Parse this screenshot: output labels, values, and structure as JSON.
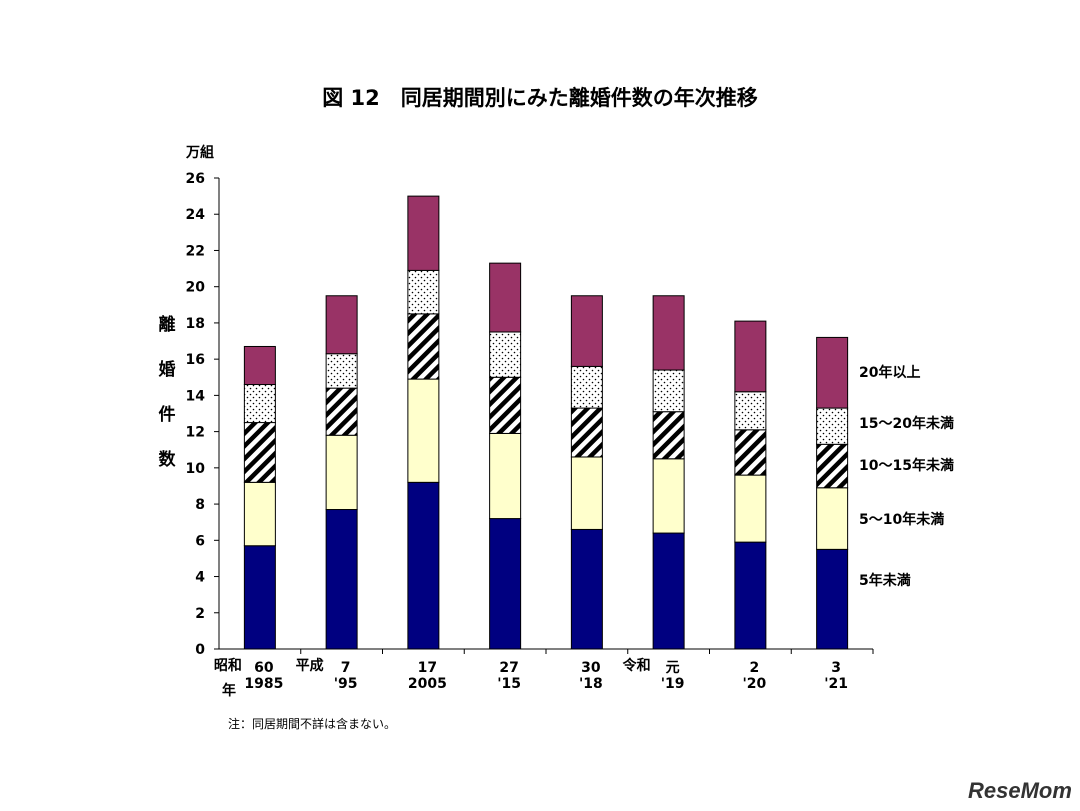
{
  "chart_data": {
    "type": "bar",
    "stacked": true,
    "title": "図 12　同居期間別にみた離婚件数の年次推移",
    "y_unit": "万組",
    "ylabel": "離婚件数",
    "ylim": [
      0,
      26
    ],
    "y_ticks": [
      0,
      2,
      4,
      6,
      8,
      10,
      12,
      14,
      16,
      18,
      20,
      22,
      24,
      26
    ],
    "grid": false,
    "legend_position": "right",
    "era_labels": [
      {
        "text": "昭和",
        "at_category": 0
      },
      {
        "text": "平成",
        "at_category": 1
      },
      {
        "text": "令和",
        "at_category": 5
      }
    ],
    "year_label": "年",
    "categories": [
      {
        "top": "60",
        "bottom": "1985"
      },
      {
        "top": "7",
        "bottom": "'95"
      },
      {
        "top": "17",
        "bottom": "2005"
      },
      {
        "top": "27",
        "bottom": "'15"
      },
      {
        "top": "30",
        "bottom": "'18"
      },
      {
        "top": "元",
        "bottom": "'19"
      },
      {
        "top": "2",
        "bottom": "'20"
      },
      {
        "top": "3",
        "bottom": "'21"
      }
    ],
    "series": [
      {
        "name": "5年未満",
        "color": "#000080",
        "pattern": "solid",
        "values": [
          5.7,
          7.7,
          9.2,
          7.2,
          6.6,
          6.4,
          5.9,
          5.5
        ]
      },
      {
        "name": "5～10年未満",
        "color": "#FFFFCC",
        "pattern": "solid",
        "values": [
          3.5,
          4.1,
          5.7,
          4.7,
          4.0,
          4.1,
          3.7,
          3.4
        ]
      },
      {
        "name": "10～15年未満",
        "color": "#000000",
        "pattern": "diagonal-stripes",
        "values": [
          3.3,
          2.6,
          3.6,
          3.1,
          2.7,
          2.6,
          2.5,
          2.4
        ]
      },
      {
        "name": "15～20年未満",
        "color": "#000000",
        "pattern": "dots",
        "values": [
          2.1,
          1.9,
          2.4,
          2.5,
          2.3,
          2.3,
          2.1,
          2.0
        ]
      },
      {
        "name": "20年以上",
        "color": "#993366",
        "pattern": "solid",
        "values": [
          2.1,
          3.2,
          4.1,
          3.8,
          3.9,
          4.1,
          3.9,
          3.9
        ]
      }
    ]
  },
  "note": "注：同居期間不詳は含まない。",
  "watermark": "ReseMom"
}
